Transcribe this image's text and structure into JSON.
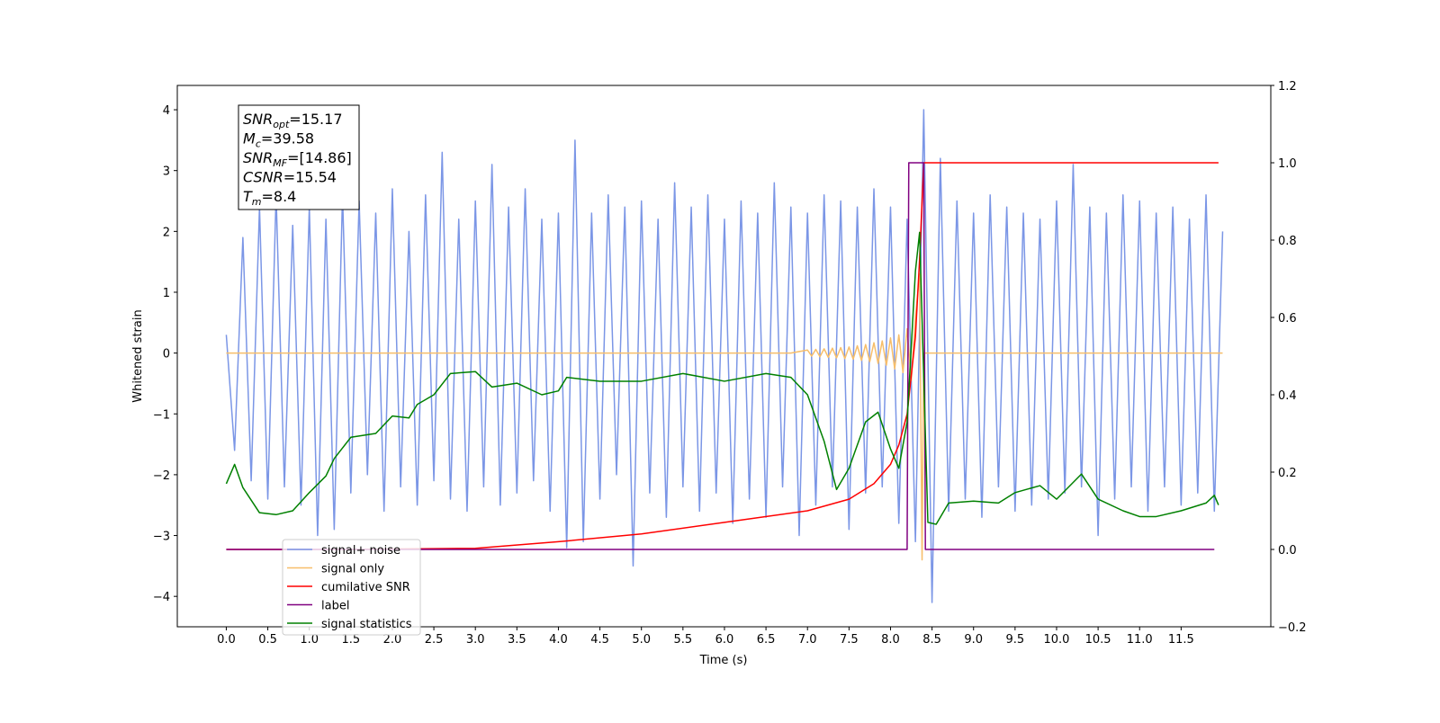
{
  "chart_data": {
    "type": "line",
    "xlabel": "Time (s)",
    "ylabel": "Whitened strain",
    "xlim": [
      -0.59,
      12.58
    ],
    "ylim": [
      -4.5,
      4.4
    ],
    "y2lim": [
      -0.2,
      1.2
    ],
    "xticks": [
      {
        "value": 0,
        "label": "0.0"
      },
      0.5,
      {
        "value": 1,
        "label": "1.0"
      },
      1.5,
      {
        "value": 2,
        "label": "2.0"
      },
      2.5,
      {
        "value": 3,
        "label": "3.0"
      },
      3.5,
      {
        "value": 4,
        "label": "4.0"
      },
      4.5,
      {
        "value": 5,
        "label": "5.0"
      },
      5.5,
      {
        "value": 6,
        "label": "6.0"
      },
      6.5,
      {
        "value": 7,
        "label": "7.0"
      },
      7.5,
      {
        "value": 8,
        "label": "8.0"
      },
      8.5,
      {
        "value": 9,
        "label": "9.0"
      },
      9.5,
      {
        "value": 10,
        "label": "10.0"
      },
      10.5,
      {
        "value": 11,
        "label": "11.0"
      },
      11.5
    ],
    "yticks": [
      {
        "value": -4,
        "label": "−4"
      },
      {
        "value": -3,
        "label": "−3"
      },
      {
        "value": -2,
        "label": "−2"
      },
      {
        "value": -1,
        "label": "−1"
      },
      0,
      1,
      2,
      3,
      4
    ],
    "y2ticks": [
      {
        "value": -0.2,
        "label": "−0.2"
      },
      {
        "value": 0,
        "label": "0.0"
      },
      0.2,
      0.4,
      0.6,
      0.8,
      {
        "value": 1,
        "label": "1.0"
      },
      1.2
    ],
    "legend": "lower left",
    "annotation": [
      {
        "main": "SNR",
        "sub": "opt",
        "rest": "=15.17"
      },
      {
        "main": "M",
        "sub": "c",
        "rest": "=39.58"
      },
      {
        "main": "SNR",
        "sub": "MF",
        "rest": "=[14.86]"
      },
      {
        "main": "CSNR",
        "sub": "",
        "rest": "=15.54"
      },
      {
        "main": "T",
        "sub": "m",
        "rest": "=8.4"
      }
    ],
    "series": [
      {
        "name": "signal+ noise",
        "color": "#7b96e6",
        "x": [
          0,
          0.1,
          0.2,
          0.3,
          0.4,
          0.5,
          0.6,
          0.7,
          0.8,
          0.9,
          1,
          1.1,
          1.2,
          1.3,
          1.4,
          1.5,
          1.6,
          1.7,
          1.8,
          1.9,
          2,
          2.1,
          2.2,
          2.3,
          2.4,
          2.5,
          2.6,
          2.7,
          2.8,
          2.9,
          3,
          3.1,
          3.2,
          3.3,
          3.4,
          3.5,
          3.6,
          3.7,
          3.8,
          3.9,
          4,
          4.1,
          4.2,
          4.3,
          4.4,
          4.5,
          4.6,
          4.7,
          4.8,
          4.9,
          5,
          5.1,
          5.2,
          5.3,
          5.4,
          5.5,
          5.6,
          5.7,
          5.8,
          5.9,
          6,
          6.1,
          6.2,
          6.3,
          6.4,
          6.5,
          6.6,
          6.7,
          6.8,
          6.9,
          7,
          7.1,
          7.2,
          7.3,
          7.4,
          7.5,
          7.6,
          7.7,
          7.8,
          7.9,
          8,
          8.1,
          8.2,
          8.3,
          8.4,
          8.5,
          8.6,
          8.7,
          8.8,
          8.9,
          9,
          9.1,
          9.2,
          9.3,
          9.4,
          9.5,
          9.6,
          9.7,
          9.8,
          9.9,
          10,
          10.1,
          10.2,
          10.3,
          10.4,
          10.5,
          10.6,
          10.7,
          10.8,
          10.9,
          11,
          11.1,
          11.2,
          11.3,
          11.4,
          11.5,
          11.6,
          11.7,
          11.8,
          11.9,
          12
        ],
        "values": [
          0.3,
          -1.6,
          1.9,
          -2.1,
          2.4,
          -2.4,
          2.6,
          -2.2,
          2.1,
          -2.5,
          2.4,
          -3.0,
          2.2,
          -2.9,
          2.6,
          -2.3,
          2.5,
          -2.0,
          2.3,
          -2.6,
          2.7,
          -2.2,
          2.0,
          -2.5,
          2.6,
          -2.1,
          3.3,
          -2.4,
          2.2,
          -2.6,
          2.5,
          -2.2,
          3.1,
          -2.5,
          2.4,
          -2.3,
          2.7,
          -2.1,
          2.2,
          -2.6,
          2.3,
          -3.2,
          3.5,
          -3.1,
          2.3,
          -2.4,
          2.6,
          -2.0,
          2.4,
          -3.5,
          2.5,
          -2.3,
          2.2,
          -2.7,
          2.8,
          -2.2,
          2.4,
          -2.6,
          2.6,
          -2.3,
          2.2,
          -2.8,
          2.5,
          -2.4,
          2.3,
          -2.7,
          2.8,
          -2.2,
          2.4,
          -3.0,
          2.3,
          -2.5,
          2.6,
          -2.2,
          2.5,
          -2.9,
          2.4,
          -2.3,
          2.7,
          -2.2,
          2.4,
          -2.8,
          2.2,
          -3.1,
          4.0,
          -4.1,
          3.2,
          -2.6,
          2.5,
          -2.4,
          2.3,
          -2.7,
          2.6,
          -2.2,
          2.4,
          -2.6,
          2.3,
          -2.5,
          2.2,
          -2.4,
          2.5,
          -2.3,
          3.1,
          -2.2,
          2.4,
          -3.0,
          2.3,
          -2.4,
          2.6,
          -2.2,
          2.5,
          -2.6,
          2.3,
          -2.2,
          2.4,
          -2.5,
          2.2,
          -2.3,
          2.6,
          -2.6,
          2.0
        ]
      },
      {
        "name": "signal only",
        "color": "#f7be6a",
        "x": [
          0,
          6.8,
          7,
          7.05,
          7.1,
          7.15,
          7.2,
          7.25,
          7.3,
          7.35,
          7.4,
          7.45,
          7.5,
          7.55,
          7.6,
          7.65,
          7.7,
          7.75,
          7.8,
          7.85,
          7.9,
          7.95,
          8,
          8.05,
          8.1,
          8.15,
          8.2,
          8.25,
          8.3,
          8.35,
          8.38,
          8.4,
          12
        ],
        "values": [
          0,
          0,
          0.05,
          -0.05,
          0.06,
          -0.06,
          0.07,
          -0.07,
          0.08,
          -0.08,
          0.09,
          -0.09,
          0.1,
          -0.1,
          0.12,
          -0.12,
          0.14,
          -0.14,
          0.17,
          -0.17,
          0.2,
          -0.2,
          0.25,
          -0.26,
          0.3,
          -0.32,
          0.4,
          -0.45,
          0.6,
          1.3,
          -3.4,
          0,
          0
        ]
      },
      {
        "name": "cumilative SNR",
        "color": "#ff0000",
        "axis": "y2",
        "x": [
          0,
          1.5,
          3,
          4,
          5,
          6,
          7,
          7.5,
          7.8,
          8,
          8.1,
          8.2,
          8.3,
          8.35,
          8.4,
          11.95
        ],
        "values": [
          0,
          0,
          0.003,
          0.02,
          0.04,
          0.07,
          0.1,
          0.13,
          0.17,
          0.22,
          0.27,
          0.35,
          0.55,
          0.75,
          1,
          1
        ]
      },
      {
        "name": "label",
        "color": "#800080",
        "axis": "y2",
        "x": [
          0,
          8.2,
          8.22,
          8.4,
          8.42,
          11.9
        ],
        "values": [
          0,
          0,
          1,
          1,
          0,
          0
        ]
      },
      {
        "name": "signal statistics",
        "color": "#008000",
        "axis": "y2",
        "x": [
          0,
          0.1,
          0.2,
          0.4,
          0.6,
          0.8,
          1,
          1.2,
          1.3,
          1.5,
          1.8,
          2,
          2.2,
          2.3,
          2.5,
          2.7,
          3,
          3.2,
          3.5,
          3.8,
          4,
          4.1,
          4.5,
          5,
          5.5,
          6,
          6.5,
          6.8,
          7,
          7.2,
          7.35,
          7.5,
          7.7,
          7.85,
          8,
          8.1,
          8.2,
          8.3,
          8.35,
          8.4,
          8.45,
          8.55,
          8.7,
          9,
          9.3,
          9.5,
          9.8,
          10,
          10.3,
          10.5,
          10.8,
          11,
          11.2,
          11.5,
          11.8,
          11.9,
          11.95
        ],
        "values": [
          0.17,
          0.22,
          0.16,
          0.095,
          0.09,
          0.1,
          0.147,
          0.19,
          0.235,
          0.29,
          0.3,
          0.345,
          0.34,
          0.375,
          0.4,
          0.455,
          0.46,
          0.42,
          0.43,
          0.4,
          0.41,
          0.445,
          0.435,
          0.435,
          0.455,
          0.435,
          0.455,
          0.445,
          0.4,
          0.28,
          0.155,
          0.21,
          0.33,
          0.355,
          0.26,
          0.21,
          0.33,
          0.72,
          0.82,
          0.445,
          0.07,
          0.065,
          0.12,
          0.125,
          0.12,
          0.147,
          0.165,
          0.13,
          0.195,
          0.13,
          0.1,
          0.085,
          0.085,
          0.1,
          0.12,
          0.14,
          0.115
        ]
      }
    ]
  }
}
